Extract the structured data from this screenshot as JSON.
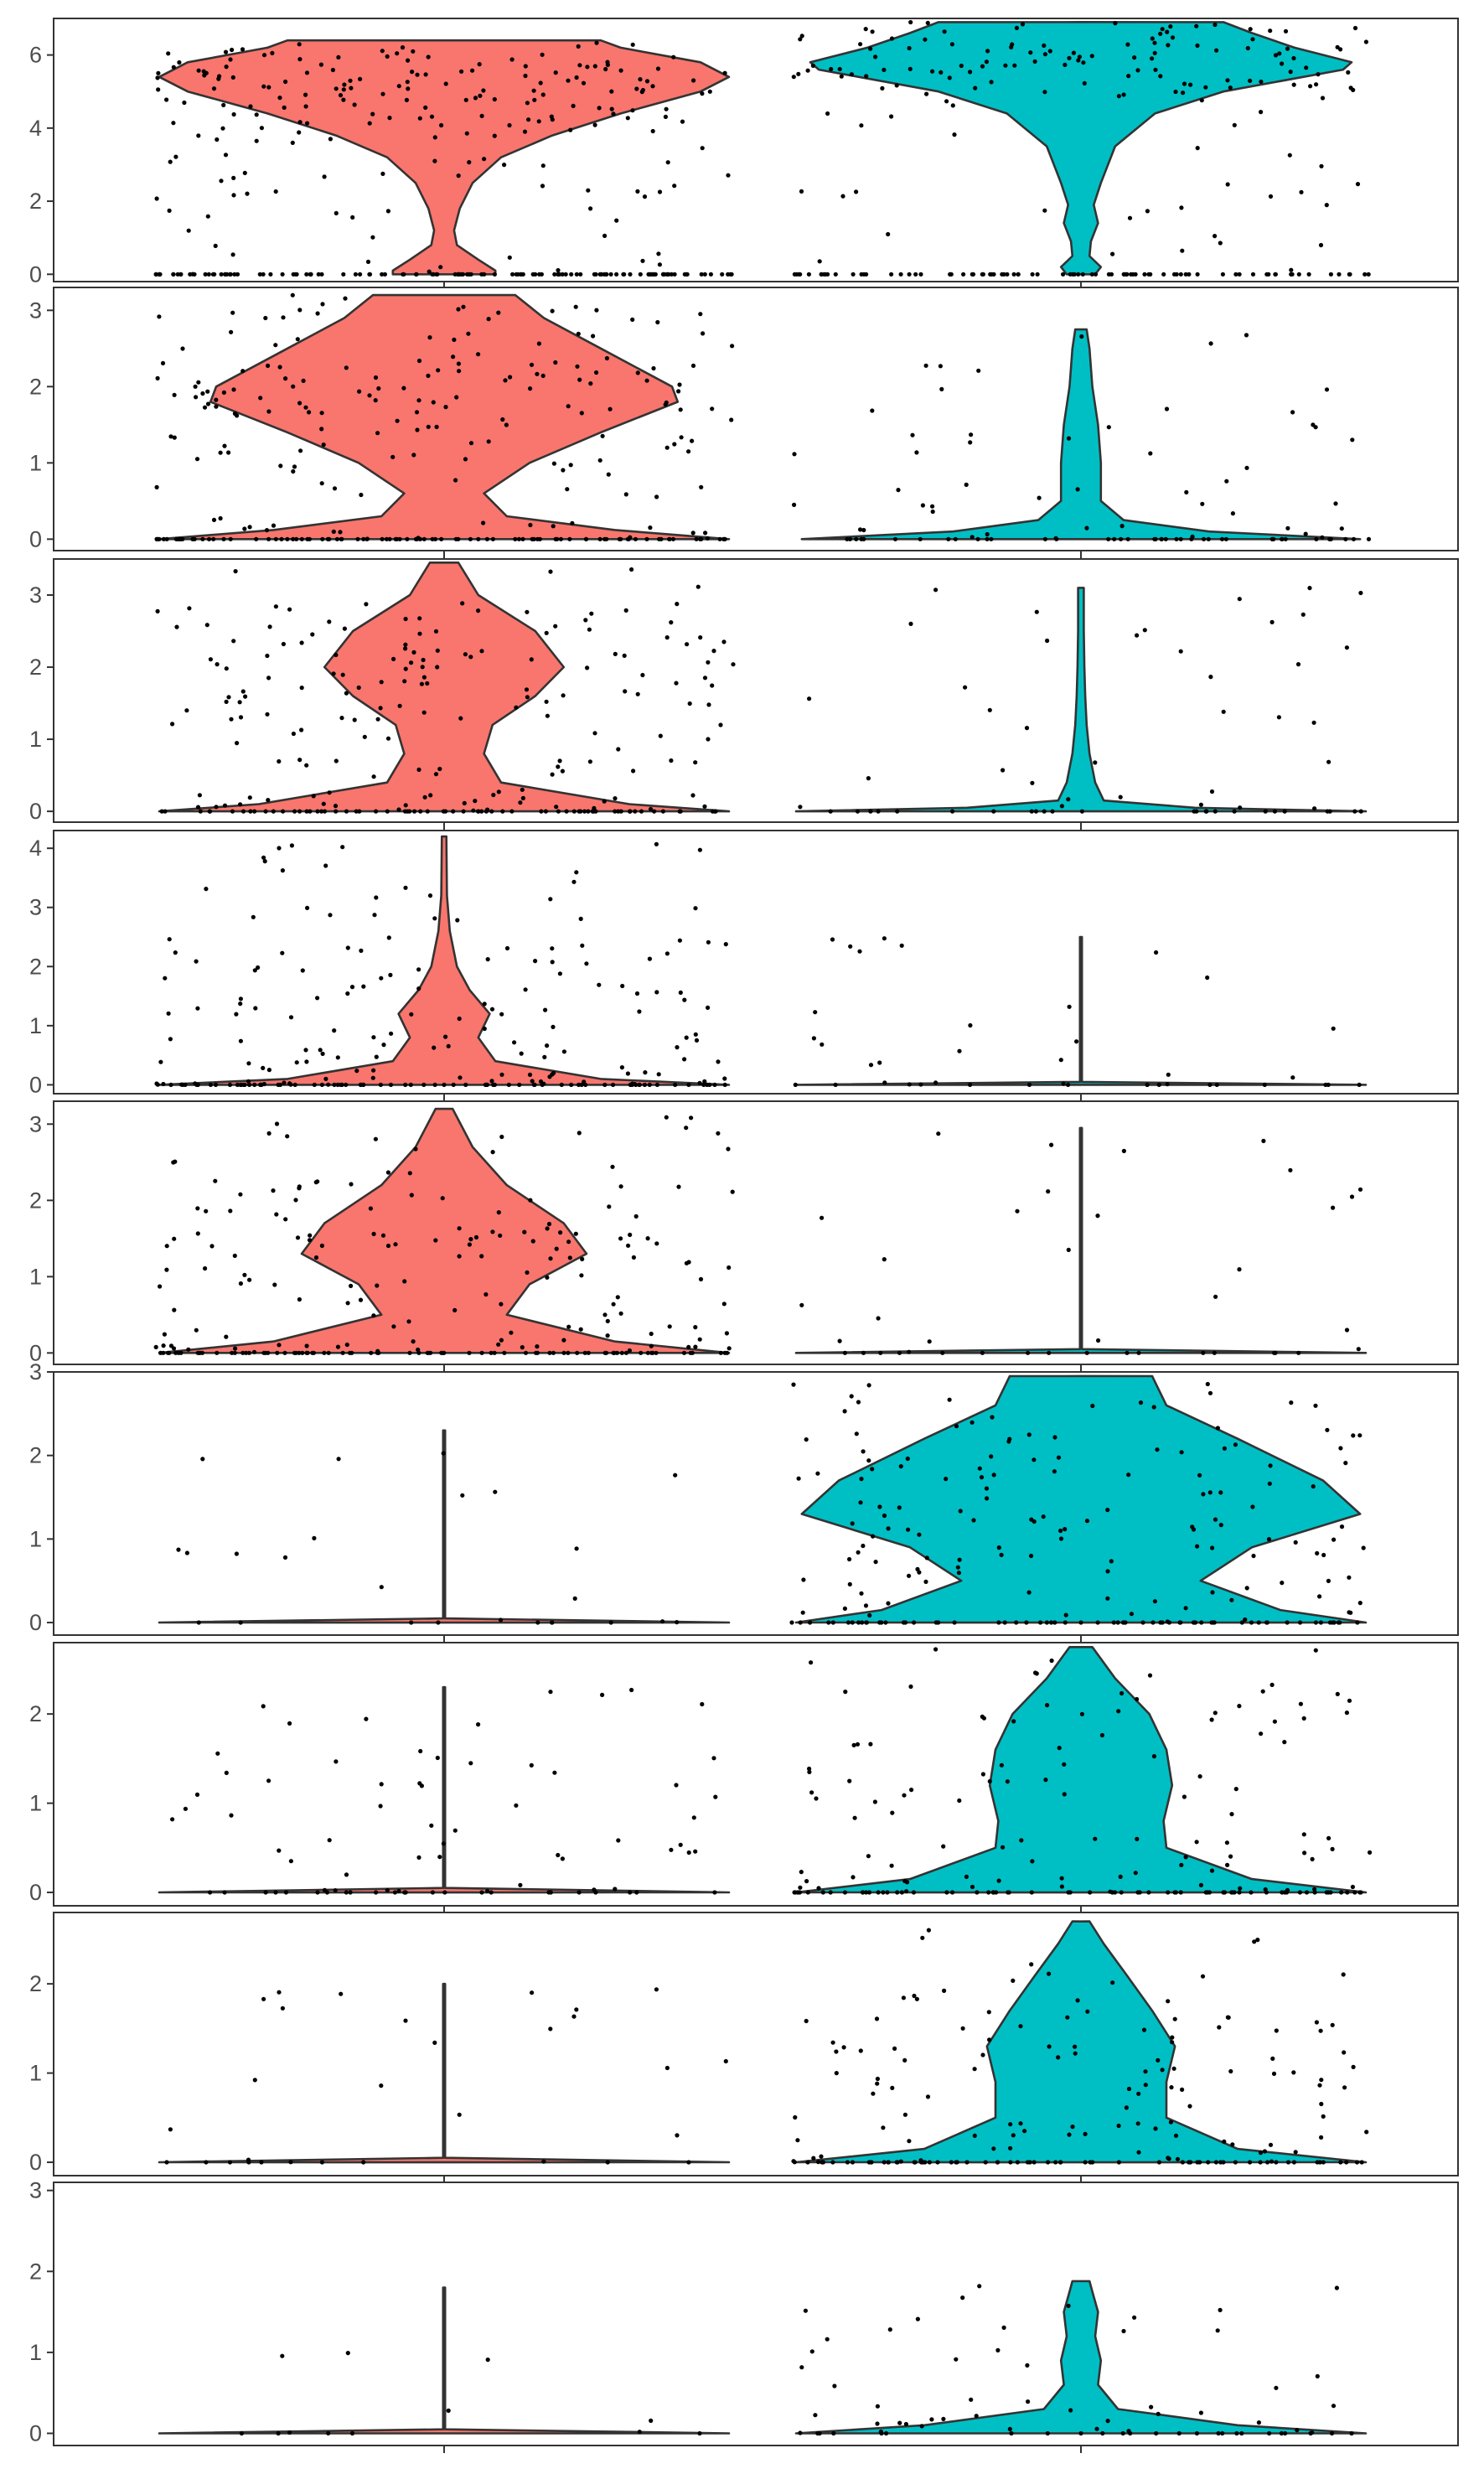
{
  "chart_data": [
    {
      "type": "violin",
      "title": "",
      "xlabel": "",
      "ylabel": "",
      "ylim": [
        -0.2,
        7.0
      ],
      "yticks": [
        0,
        2,
        4,
        6
      ],
      "grid": false,
      "legend": "none",
      "groups": [
        {
          "fill": "#F8766D",
          "profile": [
            [
              0.0,
              0.18
            ],
            [
              0.1,
              0.18
            ],
            [
              0.4,
              0.12
            ],
            [
              0.8,
              0.045
            ],
            [
              1.2,
              0.035
            ],
            [
              1.8,
              0.055
            ],
            [
              2.5,
              0.1
            ],
            [
              3.2,
              0.2
            ],
            [
              3.8,
              0.38
            ],
            [
              4.4,
              0.62
            ],
            [
              5.0,
              0.9
            ],
            [
              5.4,
              1.0
            ],
            [
              5.8,
              0.9
            ],
            [
              6.2,
              0.62
            ],
            [
              6.4,
              0.55
            ]
          ],
          "jitter_max": 6.4,
          "n_points": 320
        },
        {
          "fill": "#00BFC4",
          "profile": [
            [
              0.0,
              0.05
            ],
            [
              0.2,
              0.07
            ],
            [
              0.5,
              0.03
            ],
            [
              0.9,
              0.035
            ],
            [
              1.4,
              0.06
            ],
            [
              1.9,
              0.045
            ],
            [
              2.5,
              0.07
            ],
            [
              3.5,
              0.12
            ],
            [
              4.4,
              0.26
            ],
            [
              5.0,
              0.5
            ],
            [
              5.6,
              0.92
            ],
            [
              5.8,
              0.95
            ],
            [
              6.2,
              0.75
            ],
            [
              6.6,
              0.6
            ],
            [
              6.9,
              0.5
            ]
          ],
          "jitter_max": 6.9,
          "n_points": 230
        }
      ]
    },
    {
      "type": "violin",
      "title": "",
      "xlabel": "",
      "ylabel": "",
      "ylim": [
        -0.15,
        3.3
      ],
      "yticks": [
        0,
        1,
        2,
        3
      ],
      "grid": false,
      "legend": "none",
      "groups": [
        {
          "fill": "#F8766D",
          "profile": [
            [
              0.0,
              1.0
            ],
            [
              0.12,
              0.6
            ],
            [
              0.3,
              0.22
            ],
            [
              0.6,
              0.14
            ],
            [
              1.0,
              0.3
            ],
            [
              1.4,
              0.55
            ],
            [
              1.8,
              0.82
            ],
            [
              2.0,
              0.8
            ],
            [
              2.5,
              0.55
            ],
            [
              2.9,
              0.35
            ],
            [
              3.2,
              0.25
            ]
          ],
          "jitter_max": 3.2,
          "n_points": 260
        },
        {
          "fill": "#00BFC4",
          "profile": [
            [
              0.0,
              0.98
            ],
            [
              0.1,
              0.45
            ],
            [
              0.25,
              0.15
            ],
            [
              0.5,
              0.07
            ],
            [
              1.0,
              0.07
            ],
            [
              1.5,
              0.06
            ],
            [
              2.0,
              0.04
            ],
            [
              2.5,
              0.03
            ],
            [
              2.75,
              0.02
            ]
          ],
          "jitter_max": 2.8,
          "n_points": 90
        }
      ]
    },
    {
      "type": "violin",
      "title": "",
      "xlabel": "",
      "ylabel": "",
      "ylim": [
        -0.15,
        3.5
      ],
      "yticks": [
        0,
        1,
        2,
        3
      ],
      "grid": false,
      "legend": "none",
      "groups": [
        {
          "fill": "#F8766D",
          "profile": [
            [
              0.0,
              1.0
            ],
            [
              0.1,
              0.65
            ],
            [
              0.4,
              0.2
            ],
            [
              0.8,
              0.14
            ],
            [
              1.2,
              0.17
            ],
            [
              1.6,
              0.32
            ],
            [
              2.0,
              0.42
            ],
            [
              2.5,
              0.32
            ],
            [
              3.0,
              0.12
            ],
            [
              3.45,
              0.05
            ]
          ],
          "jitter_max": 3.4,
          "n_points": 230
        },
        {
          "fill": "#00BFC4",
          "profile": [
            [
              0.0,
              1.0
            ],
            [
              0.05,
              0.4
            ],
            [
              0.15,
              0.08
            ],
            [
              0.4,
              0.05
            ],
            [
              0.8,
              0.03
            ],
            [
              1.2,
              0.02
            ],
            [
              1.6,
              0.015
            ],
            [
              2.0,
              0.012
            ],
            [
              2.5,
              0.01
            ],
            [
              3.1,
              0.01
            ]
          ],
          "jitter_max": 3.1,
          "n_points": 60
        }
      ]
    },
    {
      "type": "violin",
      "title": "",
      "xlabel": "",
      "ylabel": "",
      "ylim": [
        -0.15,
        4.3
      ],
      "yticks": [
        0,
        1,
        2,
        3,
        4
      ],
      "grid": false,
      "legend": "none",
      "groups": [
        {
          "fill": "#F8766D",
          "profile": [
            [
              0.0,
              1.0
            ],
            [
              0.1,
              0.55
            ],
            [
              0.4,
              0.18
            ],
            [
              0.8,
              0.12
            ],
            [
              1.2,
              0.16
            ],
            [
              1.6,
              0.09
            ],
            [
              2.0,
              0.045
            ],
            [
              2.6,
              0.02
            ],
            [
              3.2,
              0.01
            ],
            [
              4.2,
              0.008
            ]
          ],
          "jitter_max": 4.2,
          "n_points": 220
        },
        {
          "fill": "#00BFC4",
          "profile": [
            [
              0.0,
              1.0
            ],
            [
              0.05,
              0.002
            ],
            [
              2.5,
              0.002
            ]
          ],
          "jitter_max": 2.5,
          "n_points": 40
        }
      ]
    },
    {
      "type": "violin",
      "title": "",
      "xlabel": "",
      "ylabel": "",
      "ylim": [
        -0.15,
        3.3
      ],
      "yticks": [
        0,
        1,
        2,
        3
      ],
      "grid": false,
      "legend": "none",
      "groups": [
        {
          "fill": "#F8766D",
          "profile": [
            [
              0.0,
              1.0
            ],
            [
              0.15,
              0.6
            ],
            [
              0.5,
              0.22
            ],
            [
              0.9,
              0.3
            ],
            [
              1.3,
              0.5
            ],
            [
              1.7,
              0.42
            ],
            [
              2.2,
              0.22
            ],
            [
              2.7,
              0.1
            ],
            [
              3.2,
              0.03
            ]
          ],
          "jitter_max": 3.2,
          "n_points": 230
        },
        {
          "fill": "#00BFC4",
          "profile": [
            [
              0.0,
              1.0
            ],
            [
              0.05,
              0.002
            ],
            [
              2.95,
              0.002
            ]
          ],
          "jitter_max": 2.95,
          "n_points": 40
        }
      ]
    },
    {
      "type": "violin",
      "title": "",
      "xlabel": "",
      "ylabel": "",
      "ylim": [
        -0.15,
        3.0
      ],
      "yticks": [
        0,
        1,
        2,
        3
      ],
      "grid": false,
      "legend": "none",
      "groups": [
        {
          "fill": "#F8766D",
          "profile": [
            [
              0.0,
              1.0
            ],
            [
              0.05,
              0.002
            ],
            [
              2.3,
              0.002
            ]
          ],
          "jitter_max": 2.3,
          "n_points": 25
        },
        {
          "fill": "#00BFC4",
          "profile": [
            [
              0.0,
              1.0
            ],
            [
              0.15,
              0.7
            ],
            [
              0.5,
              0.42
            ],
            [
              0.9,
              0.6
            ],
            [
              1.3,
              0.98
            ],
            [
              1.7,
              0.85
            ],
            [
              2.2,
              0.55
            ],
            [
              2.6,
              0.3
            ],
            [
              2.95,
              0.25
            ]
          ],
          "jitter_max": 2.95,
          "n_points": 200
        }
      ]
    },
    {
      "type": "violin",
      "title": "",
      "xlabel": "",
      "ylabel": "",
      "ylim": [
        -0.15,
        2.8
      ],
      "yticks": [
        0,
        1,
        2
      ],
      "grid": false,
      "legend": "none",
      "groups": [
        {
          "fill": "#F8766D",
          "profile": [
            [
              0.0,
              1.0
            ],
            [
              0.05,
              0.002
            ],
            [
              2.3,
              0.002
            ]
          ],
          "jitter_max": 2.3,
          "n_points": 80
        },
        {
          "fill": "#00BFC4",
          "profile": [
            [
              0.0,
              1.0
            ],
            [
              0.15,
              0.6
            ],
            [
              0.5,
              0.3
            ],
            [
              0.8,
              0.29
            ],
            [
              1.2,
              0.32
            ],
            [
              1.6,
              0.3
            ],
            [
              2.0,
              0.24
            ],
            [
              2.4,
              0.12
            ],
            [
              2.75,
              0.04
            ]
          ],
          "jitter_max": 2.75,
          "n_points": 170
        }
      ]
    },
    {
      "type": "violin",
      "title": "",
      "xlabel": "",
      "ylabel": "",
      "ylim": [
        -0.15,
        2.8
      ],
      "yticks": [
        0,
        1,
        2
      ],
      "grid": false,
      "legend": "none",
      "groups": [
        {
          "fill": "#F8766D",
          "profile": [
            [
              0.0,
              1.0
            ],
            [
              0.05,
              0.002
            ],
            [
              2.0,
              0.002
            ]
          ],
          "jitter_max": 2.0,
          "n_points": 30
        },
        {
          "fill": "#00BFC4",
          "profile": [
            [
              0.0,
              1.0
            ],
            [
              0.15,
              0.55
            ],
            [
              0.5,
              0.3
            ],
            [
              0.9,
              0.3
            ],
            [
              1.3,
              0.33
            ],
            [
              1.7,
              0.25
            ],
            [
              2.1,
              0.16
            ],
            [
              2.45,
              0.08
            ],
            [
              2.7,
              0.03
            ]
          ],
          "jitter_max": 2.7,
          "n_points": 180
        }
      ]
    },
    {
      "type": "violin",
      "title": "",
      "xlabel": "",
      "ylabel": "",
      "ylim": [
        -0.15,
        3.1
      ],
      "yticks": [
        0,
        1,
        2,
        3
      ],
      "grid": false,
      "legend": "none",
      "groups": [
        {
          "fill": "#F8766D",
          "profile": [
            [
              0.0,
              1.0
            ],
            [
              0.05,
              0.002
            ],
            [
              1.8,
              0.002
            ]
          ],
          "jitter_max": 1.8,
          "n_points": 12
        },
        {
          "fill": "#00BFC4",
          "profile": [
            [
              0.0,
              1.0
            ],
            [
              0.1,
              0.55
            ],
            [
              0.3,
              0.13
            ],
            [
              0.6,
              0.06
            ],
            [
              0.9,
              0.07
            ],
            [
              1.2,
              0.05
            ],
            [
              1.5,
              0.06
            ],
            [
              1.75,
              0.04
            ],
            [
              1.88,
              0.03
            ]
          ],
          "jitter_max": 1.9,
          "n_points": 70
        }
      ]
    }
  ]
}
